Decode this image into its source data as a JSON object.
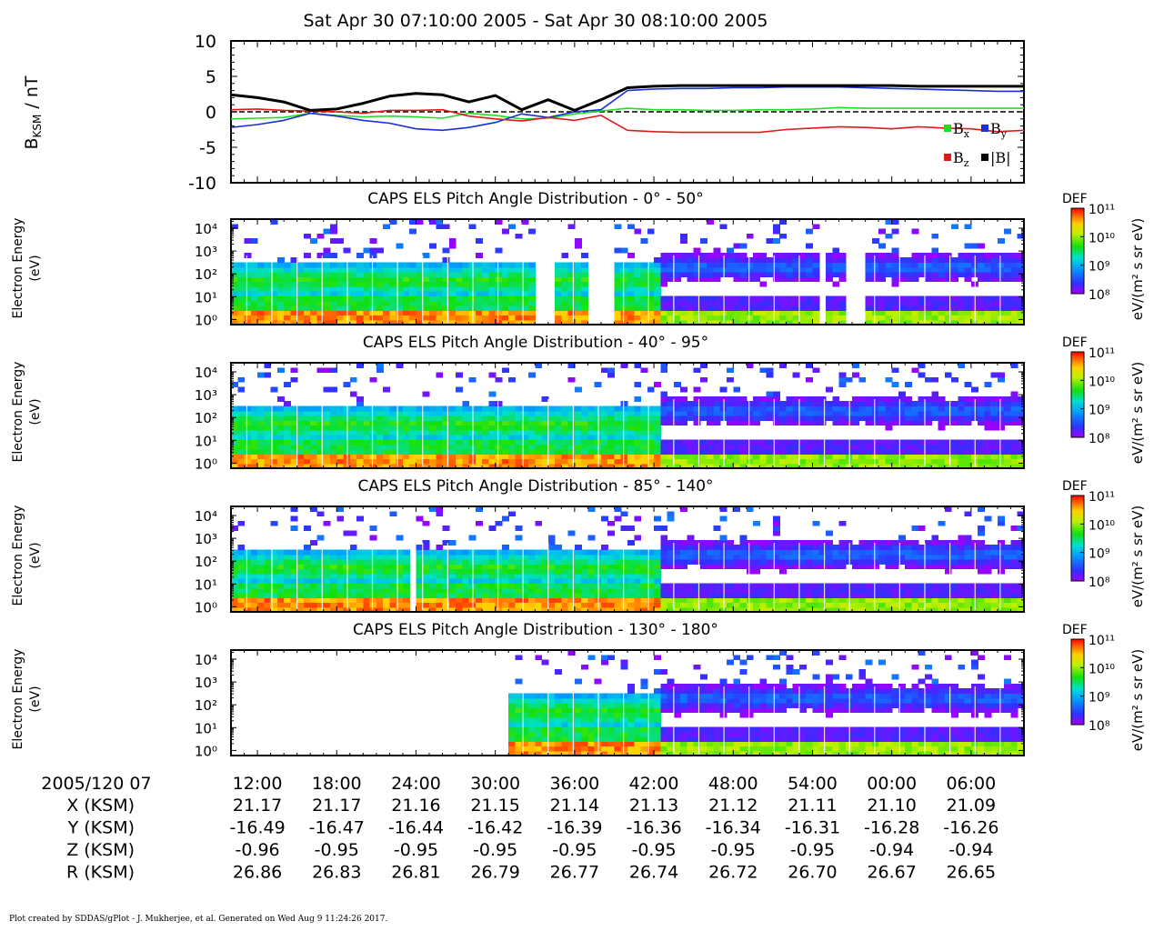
{
  "title": "Sat Apr 30 07:10:00 2005 - Sat Apr 30 08:10:00 2005",
  "footer": "Plot created by SDDAS/gPlot - J. Mukherjee, et al.  Generated on Wed Aug 9 11:24:26 2017.",
  "colors": {
    "bx": "#22dd22",
    "by": "#1a2fd6",
    "bz": "#e01a1a",
    "bmag": "#000000",
    "gap": "#ffffff"
  },
  "chart_data": [
    {
      "type": "line",
      "ylabel": "B",
      "ylabel_sub": "KSM",
      "ylabel_unit": " / nT",
      "ylim": [
        -10,
        10
      ],
      "yticks": [
        "10",
        "5",
        "0",
        "-5",
        "-10"
      ],
      "zero_line": "dashed",
      "legend_position": "bottom-right",
      "x_minutes": [
        0,
        2,
        4,
        6,
        8,
        10,
        12,
        14,
        16,
        18,
        20,
        22,
        24,
        26,
        28,
        30,
        32,
        34,
        36,
        38,
        40,
        42,
        44,
        46,
        48,
        50,
        52,
        54,
        56,
        58,
        60
      ],
      "series": [
        {
          "name": "B",
          "sub": "x",
          "color_key": "bx",
          "values": [
            -1.0,
            -0.9,
            -0.8,
            -0.2,
            -0.5,
            -0.7,
            -0.6,
            -0.7,
            -0.9,
            -0.2,
            -0.5,
            -1.0,
            -0.9,
            -0.3,
            0.1,
            0.5,
            0.3,
            0.3,
            0.2,
            0.2,
            0.3,
            0.3,
            0.4,
            0.6,
            0.5,
            0.5,
            0.5,
            0.5,
            0.5,
            0.5,
            0.5
          ]
        },
        {
          "name": "B",
          "sub": "y",
          "color_key": "by",
          "values": [
            -2.2,
            -1.8,
            -1.2,
            -0.2,
            -0.6,
            -1.2,
            -1.6,
            -2.4,
            -2.6,
            -2.2,
            -1.5,
            -0.3,
            -0.8,
            0.0,
            0.3,
            3.0,
            3.2,
            3.3,
            3.3,
            3.4,
            3.4,
            3.5,
            3.5,
            3.5,
            3.4,
            3.3,
            3.2,
            3.1,
            3.0,
            2.9,
            2.9
          ]
        },
        {
          "name": "B",
          "sub": "z",
          "color_key": "bz",
          "values": [
            0.3,
            0.4,
            0.2,
            0.1,
            0.0,
            -0.2,
            0.2,
            0.2,
            0.3,
            -0.6,
            -1.0,
            -1.3,
            -0.8,
            -1.2,
            -0.5,
            -2.6,
            -2.8,
            -2.9,
            -2.9,
            -2.9,
            -2.9,
            -2.5,
            -2.3,
            -2.1,
            -2.2,
            -2.4,
            -2.1,
            -2.3,
            -2.4,
            -2.8,
            -2.6
          ]
        },
        {
          "name": "|B|",
          "sub": "",
          "color_key": "bmag",
          "values": [
            2.4,
            2.0,
            1.4,
            0.2,
            0.4,
            1.2,
            2.2,
            2.6,
            2.4,
            1.4,
            2.3,
            0.3,
            1.7,
            0.2,
            1.7,
            3.4,
            3.6,
            3.7,
            3.7,
            3.7,
            3.7,
            3.7,
            3.7,
            3.7,
            3.7,
            3.7,
            3.6,
            3.6,
            3.6,
            3.6,
            3.6
          ]
        }
      ]
    },
    {
      "type": "heatmap",
      "title": "CAPS ELS Pitch Angle Distribution - 0° - 50°",
      "ylabel": [
        "Electron Energy",
        "(eV)"
      ],
      "yscale": "log",
      "ylim": [
        0.6,
        25000
      ],
      "yticks": [
        "10⁴",
        "10³",
        "10²",
        "10¹",
        "10⁰"
      ],
      "colorbar": {
        "label": "DEF",
        "unit": "eV/(m² s sr eV)",
        "ticks": [
          "10¹¹",
          "10¹⁰",
          "10⁹",
          "10⁸"
        ],
        "range": [
          100000000,
          100000000000
        ],
        "scale": "log"
      },
      "data_gaps_minutes": [
        [
          22.8,
          24.2
        ],
        [
          27.0,
          28.8
        ],
        [
          44.5,
          45.0
        ],
        [
          46.4,
          47.6
        ]
      ]
    },
    {
      "type": "heatmap",
      "title": "CAPS ELS Pitch Angle Distribution - 40° - 95°",
      "ylabel": [
        "Electron Energy",
        "(eV)"
      ],
      "yscale": "log",
      "ylim": [
        0.6,
        25000
      ],
      "yticks": [
        "10⁴",
        "10³",
        "10²",
        "10¹",
        "10⁰"
      ],
      "colorbar": {
        "label": "DEF",
        "unit": "eV/(m² s sr eV)",
        "ticks": [
          "10¹¹",
          "10¹⁰",
          "10⁹",
          "10⁸"
        ],
        "range": [
          100000000,
          100000000000
        ],
        "scale": "log"
      },
      "data_gaps_minutes": []
    },
    {
      "type": "heatmap",
      "title": "CAPS ELS Pitch Angle Distribution - 85° - 140°",
      "ylabel": [
        "Electron Energy",
        "(eV)"
      ],
      "yscale": "log",
      "ylim": [
        0.6,
        25000
      ],
      "yticks": [
        "10⁴",
        "10³",
        "10²",
        "10¹",
        "10⁰"
      ],
      "colorbar": {
        "label": "DEF",
        "unit": "eV/(m² s sr eV)",
        "ticks": [
          "10¹¹",
          "10¹⁰",
          "10⁹",
          "10⁸"
        ],
        "range": [
          100000000,
          100000000000
        ],
        "scale": "log"
      },
      "data_gaps_minutes": [
        [
          13.3,
          13.9
        ]
      ]
    },
    {
      "type": "heatmap",
      "title": "CAPS ELS Pitch Angle Distribution - 130° - 180°",
      "ylabel": [
        "Electron Energy",
        "(eV)"
      ],
      "yscale": "log",
      "ylim": [
        0.6,
        25000
      ],
      "yticks": [
        "10⁴",
        "10³",
        "10²",
        "10¹",
        "10⁰"
      ],
      "colorbar": {
        "label": "DEF",
        "unit": "eV/(m² s sr eV)",
        "ticks": [
          "10¹¹",
          "10¹⁰",
          "10⁹",
          "10⁸"
        ],
        "range": [
          100000000,
          100000000000
        ],
        "scale": "log"
      },
      "data_gaps_minutes": [
        [
          0,
          21.0
        ]
      ]
    }
  ],
  "time_axis": {
    "start_label": "2005/120 07",
    "labels": [
      "12:00",
      "18:00",
      "24:00",
      "30:00",
      "36:00",
      "42:00",
      "48:00",
      "54:00",
      "00:00",
      "06:00"
    ],
    "label_minutes": [
      2,
      8,
      14,
      20,
      26,
      32,
      38,
      44,
      50,
      56
    ],
    "range_minutes": [
      0,
      60
    ]
  },
  "ephemeris": [
    {
      "label": "X (KSM)",
      "values": [
        "21.17",
        "21.17",
        "21.16",
        "21.15",
        "21.14",
        "21.13",
        "21.12",
        "21.11",
        "21.10",
        "21.09"
      ]
    },
    {
      "label": "Y (KSM)",
      "values": [
        "-16.49",
        "-16.47",
        "-16.44",
        "-16.42",
        "-16.39",
        "-16.36",
        "-16.34",
        "-16.31",
        "-16.28",
        "-16.26"
      ]
    },
    {
      "label": "Z (KSM)",
      "values": [
        "-0.96",
        "-0.95",
        "-0.95",
        "-0.95",
        "-0.95",
        "-0.95",
        "-0.95",
        "-0.95",
        "-0.94",
        "-0.94"
      ]
    },
    {
      "label": "R (KSM)",
      "values": [
        "26.86",
        "26.83",
        "26.81",
        "26.79",
        "26.77",
        "26.74",
        "26.72",
        "26.70",
        "26.67",
        "26.65"
      ]
    }
  ]
}
